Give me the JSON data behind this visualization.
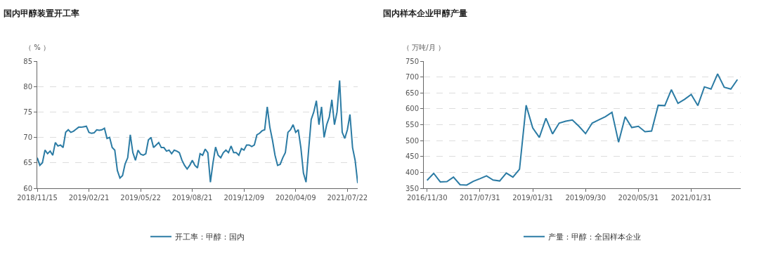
{
  "chart_data": [
    {
      "type": "line",
      "title": "国内甲醇装置开工率",
      "ylabel": "（ % ）",
      "categories": [
        "2018/11/15",
        null,
        null,
        null,
        null,
        null,
        null,
        null,
        null,
        null,
        null,
        null,
        null,
        null,
        null,
        null,
        null,
        null,
        null,
        null,
        "2019/02/21",
        null,
        null,
        null,
        null,
        null,
        null,
        null,
        null,
        null,
        null,
        null,
        null,
        null,
        null,
        null,
        null,
        null,
        null,
        null,
        "2019/05/22",
        null,
        null,
        null,
        null,
        null,
        null,
        null,
        null,
        null,
        null,
        null,
        null,
        null,
        null,
        null,
        null,
        null,
        null,
        null,
        "2019/08/21",
        null,
        null,
        null,
        null,
        null,
        null,
        null,
        null,
        null,
        null,
        null,
        null,
        null,
        null,
        null,
        null,
        null,
        null,
        null,
        "2019/12/09",
        null,
        null,
        null,
        null,
        null,
        null,
        null,
        null,
        null,
        null,
        null,
        null,
        null,
        null,
        null,
        null,
        null,
        null,
        null,
        "2020/04/09",
        null,
        null,
        null,
        null,
        null,
        null,
        null,
        null,
        null,
        null,
        null,
        null,
        null,
        null,
        null,
        null,
        null,
        null,
        null,
        "2021/07/22",
        null,
        null,
        null,
        null
      ],
      "series": [
        {
          "name": "开工率：甲醇：国内",
          "color": "#2b7ba4",
          "values": [
            66,
            64.5,
            65,
            67.5,
            66.8,
            67.3,
            66.5,
            69,
            68.3,
            68.5,
            68,
            71,
            71.5,
            71,
            71.2,
            71.6,
            72,
            72,
            72.1,
            72.2,
            71,
            70.8,
            70.9,
            71.5,
            71.4,
            71.5,
            71.8,
            69.8,
            70,
            68,
            67.5,
            63.5,
            62,
            62.5,
            64.8,
            66,
            70.5,
            67,
            65.5,
            67.5,
            66.7,
            66.5,
            66.8,
            69.5,
            70,
            68,
            68.5,
            69,
            68,
            68,
            67.3,
            67.5,
            66.8,
            67.5,
            67.3,
            67,
            65.5,
            64.5,
            63.8,
            64.5,
            65.5,
            64.5,
            64,
            66.8,
            66.5,
            67.7,
            67,
            61.2,
            65,
            68.1,
            66.5,
            66,
            67,
            67.5,
            67,
            68.3,
            67,
            67,
            66.5,
            67.8,
            67.5,
            68.5,
            68.5,
            68.2,
            68.5,
            70.5,
            70.8,
            71.3,
            71.5,
            76,
            72,
            69.5,
            66.5,
            64.5,
            64.7,
            66,
            67,
            71,
            71.5,
            72.5,
            71,
            71.5,
            68,
            63,
            61.2,
            67.5,
            73.5,
            75,
            77.2,
            72.5,
            76,
            70,
            72.5,
            74,
            77.4,
            72.5,
            75,
            81.2,
            71,
            69.8,
            71.5,
            74.5,
            68,
            65.5,
            61
          ]
        }
      ],
      "ylim": [
        60,
        85
      ],
      "yticks": [
        60,
        65,
        70,
        75,
        80,
        85
      ],
      "grid": "y",
      "legend": "bottom",
      "line_style": "solid"
    },
    {
      "type": "line",
      "title": "国内样本企业甲醇产量",
      "ylabel": "（ 万吨/月 ）",
      "categories": [
        "2016/11/30",
        null,
        null,
        null,
        null,
        null,
        null,
        null,
        "2017/07/31",
        null,
        null,
        null,
        null,
        null,
        null,
        null,
        "2019/01/31",
        null,
        null,
        null,
        null,
        null,
        null,
        null,
        "2019/09/30",
        null,
        null,
        null,
        null,
        null,
        null,
        null,
        "2020/05/31",
        null,
        null,
        null,
        null,
        null,
        null,
        null,
        "2021/01/31",
        null,
        null,
        null,
        null,
        null,
        null,
        null
      ],
      "series": [
        {
          "name": "产量：甲醇：全国样本企业",
          "color": "#2b7ba4",
          "values": [
            375,
            397,
            370,
            371,
            385,
            361,
            360,
            372,
            380,
            389,
            376,
            373,
            398,
            385,
            410,
            611,
            540,
            510,
            570,
            521,
            555,
            561,
            565,
            545,
            522,
            555,
            565,
            575,
            589,
            495,
            575,
            541,
            545,
            528,
            530,
            611,
            610,
            660,
            617,
            630,
            645,
            610,
            669,
            662,
            710,
            668,
            662,
            692
          ]
        }
      ],
      "ylim": [
        350,
        750
      ],
      "yticks": [
        350,
        400,
        450,
        500,
        550,
        600,
        650,
        700,
        750
      ],
      "grid": "y",
      "legend": "bottom",
      "line_style": "solid"
    }
  ]
}
